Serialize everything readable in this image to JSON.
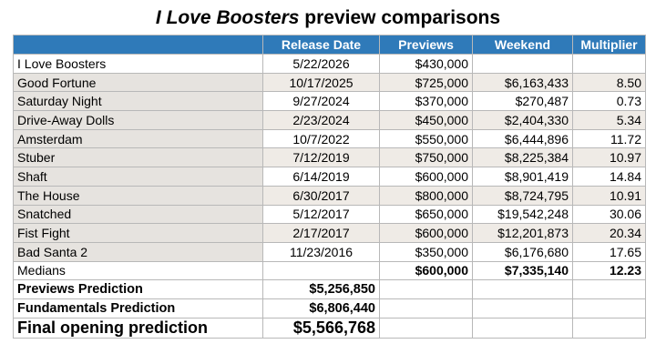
{
  "title": {
    "italic": "I Love Boosters",
    "rest": " preview comparisons"
  },
  "headers": [
    "",
    "Release Date",
    "Previews",
    "Weekend",
    "Multiplier"
  ],
  "rows": [
    {
      "film": "I Love Boosters",
      "date": "5/22/2026",
      "previews": "$430,000",
      "weekend": "",
      "multiplier": ""
    },
    {
      "film": "Good Fortune",
      "date": "10/17/2025",
      "previews": "$725,000",
      "weekend": "$6,163,433",
      "multiplier": "8.50"
    },
    {
      "film": "Saturday Night",
      "date": "9/27/2024",
      "previews": "$370,000",
      "weekend": "$270,487",
      "multiplier": "0.73"
    },
    {
      "film": "Drive-Away Dolls",
      "date": "2/23/2024",
      "previews": "$450,000",
      "weekend": "$2,404,330",
      "multiplier": "5.34"
    },
    {
      "film": "Amsterdam",
      "date": "10/7/2022",
      "previews": "$550,000",
      "weekend": "$6,444,896",
      "multiplier": "11.72"
    },
    {
      "film": "Stuber",
      "date": "7/12/2019",
      "previews": "$750,000",
      "weekend": "$8,225,384",
      "multiplier": "10.97"
    },
    {
      "film": "Shaft",
      "date": "6/14/2019",
      "previews": "$600,000",
      "weekend": "$8,901,419",
      "multiplier": "14.84"
    },
    {
      "film": "The House",
      "date": "6/30/2017",
      "previews": "$800,000",
      "weekend": "$8,724,795",
      "multiplier": "10.91"
    },
    {
      "film": "Snatched",
      "date": "5/12/2017",
      "previews": "$650,000",
      "weekend": "$19,542,248",
      "multiplier": "30.06"
    },
    {
      "film": "Fist Fight",
      "date": "2/17/2017",
      "previews": "$600,000",
      "weekend": "$12,201,873",
      "multiplier": "20.34"
    },
    {
      "film": "Bad Santa 2",
      "date": "11/23/2016",
      "previews": "$350,000",
      "weekend": "$6,176,680",
      "multiplier": "17.65"
    }
  ],
  "medians": {
    "label": "Medians",
    "previews": "$600,000",
    "weekend": "$7,335,140",
    "multiplier": "12.23"
  },
  "previews_prediction": {
    "label": "Previews Prediction",
    "value": "$5,256,850"
  },
  "fundamentals_prediction": {
    "label": "Fundamentals Prediction",
    "value": "$6,806,440"
  },
  "final_prediction": {
    "label": "Final opening prediction",
    "value": "$5,566,768"
  },
  "colors": {
    "header_bg": "#2f7ab9",
    "name_col_bg": "#e6e3df",
    "stripe_bg": "#efebe6"
  }
}
